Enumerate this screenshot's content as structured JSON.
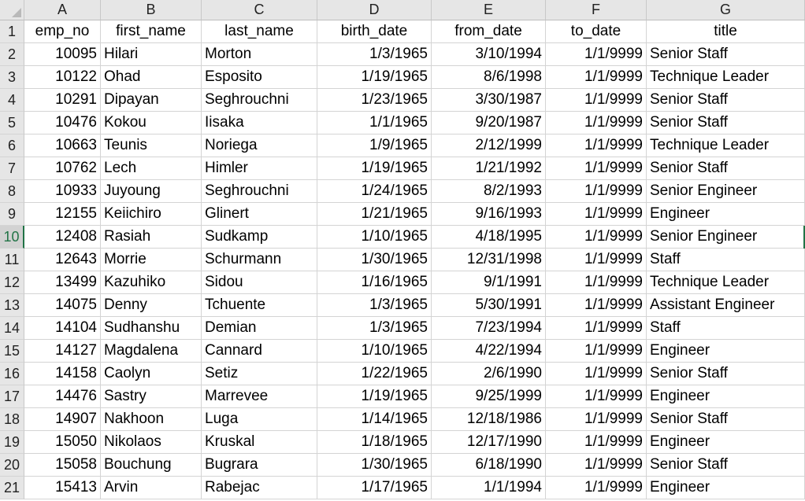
{
  "column_letters": [
    "A",
    "B",
    "C",
    "D",
    "E",
    "F",
    "G"
  ],
  "headers": [
    "emp_no",
    "first_name",
    "last_name",
    "birth_date",
    "from_date",
    "to_date",
    "title"
  ],
  "header_row_number": "1",
  "selected_row": "10",
  "rows": [
    {
      "n": "2",
      "emp_no": "10095",
      "first_name": "Hilari",
      "last_name": "Morton",
      "birth_date": "1/3/1965",
      "from_date": "3/10/1994",
      "to_date": "1/1/9999",
      "title": "Senior Staff"
    },
    {
      "n": "3",
      "emp_no": "10122",
      "first_name": "Ohad",
      "last_name": "Esposito",
      "birth_date": "1/19/1965",
      "from_date": "8/6/1998",
      "to_date": "1/1/9999",
      "title": "Technique Leader"
    },
    {
      "n": "4",
      "emp_no": "10291",
      "first_name": "Dipayan",
      "last_name": "Seghrouchni",
      "birth_date": "1/23/1965",
      "from_date": "3/30/1987",
      "to_date": "1/1/9999",
      "title": "Senior Staff"
    },
    {
      "n": "5",
      "emp_no": "10476",
      "first_name": "Kokou",
      "last_name": "Iisaka",
      "birth_date": "1/1/1965",
      "from_date": "9/20/1987",
      "to_date": "1/1/9999",
      "title": "Senior Staff"
    },
    {
      "n": "6",
      "emp_no": "10663",
      "first_name": "Teunis",
      "last_name": "Noriega",
      "birth_date": "1/9/1965",
      "from_date": "2/12/1999",
      "to_date": "1/1/9999",
      "title": "Technique Leader"
    },
    {
      "n": "7",
      "emp_no": "10762",
      "first_name": "Lech",
      "last_name": "Himler",
      "birth_date": "1/19/1965",
      "from_date": "1/21/1992",
      "to_date": "1/1/9999",
      "title": "Senior Staff"
    },
    {
      "n": "8",
      "emp_no": "10933",
      "first_name": "Juyoung",
      "last_name": "Seghrouchni",
      "birth_date": "1/24/1965",
      "from_date": "8/2/1993",
      "to_date": "1/1/9999",
      "title": "Senior Engineer"
    },
    {
      "n": "9",
      "emp_no": "12155",
      "first_name": "Keiichiro",
      "last_name": "Glinert",
      "birth_date": "1/21/1965",
      "from_date": "9/16/1993",
      "to_date": "1/1/9999",
      "title": "Engineer"
    },
    {
      "n": "10",
      "emp_no": "12408",
      "first_name": "Rasiah",
      "last_name": "Sudkamp",
      "birth_date": "1/10/1965",
      "from_date": "4/18/1995",
      "to_date": "1/1/9999",
      "title": "Senior Engineer"
    },
    {
      "n": "11",
      "emp_no": "12643",
      "first_name": "Morrie",
      "last_name": "Schurmann",
      "birth_date": "1/30/1965",
      "from_date": "12/31/1998",
      "to_date": "1/1/9999",
      "title": "Staff"
    },
    {
      "n": "12",
      "emp_no": "13499",
      "first_name": "Kazuhiko",
      "last_name": "Sidou",
      "birth_date": "1/16/1965",
      "from_date": "9/1/1991",
      "to_date": "1/1/9999",
      "title": "Technique Leader"
    },
    {
      "n": "13",
      "emp_no": "14075",
      "first_name": "Denny",
      "last_name": "Tchuente",
      "birth_date": "1/3/1965",
      "from_date": "5/30/1991",
      "to_date": "1/1/9999",
      "title": "Assistant Engineer"
    },
    {
      "n": "14",
      "emp_no": "14104",
      "first_name": "Sudhanshu",
      "last_name": "Demian",
      "birth_date": "1/3/1965",
      "from_date": "7/23/1994",
      "to_date": "1/1/9999",
      "title": "Staff"
    },
    {
      "n": "15",
      "emp_no": "14127",
      "first_name": "Magdalena",
      "last_name": "Cannard",
      "birth_date": "1/10/1965",
      "from_date": "4/22/1994",
      "to_date": "1/1/9999",
      "title": "Engineer"
    },
    {
      "n": "16",
      "emp_no": "14158",
      "first_name": "Caolyn",
      "last_name": "Setiz",
      "birth_date": "1/22/1965",
      "from_date": "2/6/1990",
      "to_date": "1/1/9999",
      "title": "Senior Staff"
    },
    {
      "n": "17",
      "emp_no": "14476",
      "first_name": "Sastry",
      "last_name": "Marrevee",
      "birth_date": "1/19/1965",
      "from_date": "9/25/1999",
      "to_date": "1/1/9999",
      "title": "Engineer"
    },
    {
      "n": "18",
      "emp_no": "14907",
      "first_name": "Nakhoon",
      "last_name": "Luga",
      "birth_date": "1/14/1965",
      "from_date": "12/18/1986",
      "to_date": "1/1/9999",
      "title": "Senior Staff"
    },
    {
      "n": "19",
      "emp_no": "15050",
      "first_name": "Nikolaos",
      "last_name": "Kruskal",
      "birth_date": "1/18/1965",
      "from_date": "12/17/1990",
      "to_date": "1/1/9999",
      "title": "Engineer"
    },
    {
      "n": "20",
      "emp_no": "15058",
      "first_name": "Bouchung",
      "last_name": "Bugrara",
      "birth_date": "1/30/1965",
      "from_date": "6/18/1990",
      "to_date": "1/1/9999",
      "title": "Senior Staff"
    },
    {
      "n": "21",
      "emp_no": "15413",
      "first_name": "Arvin",
      "last_name": "Rabejac",
      "birth_date": "1/17/1965",
      "from_date": "1/1/1994",
      "to_date": "1/1/9999",
      "title": "Engineer"
    }
  ],
  "colors": {
    "selection_accent": "#217346",
    "header_bg": "#e6e6e6",
    "gridline": "#d4d4d4"
  }
}
